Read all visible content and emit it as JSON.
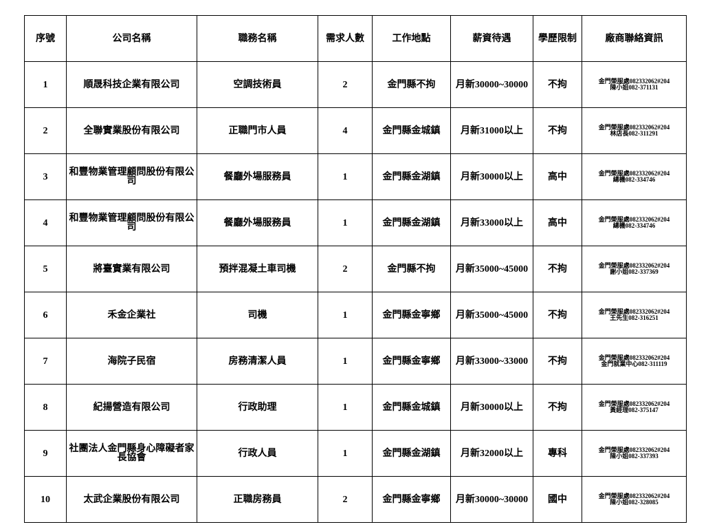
{
  "headers": [
    "序號",
    "公司名稱",
    "職務名稱",
    "需求人數",
    "工作地點",
    "薪資待遇",
    "學歷限制",
    "廠商聯絡資訊"
  ],
  "rows": [
    {
      "no": "1",
      "company": "順晟科技企業有限公司",
      "job": "空調技術員",
      "count": "2",
      "location": "金門縣不拘",
      "salary": "月新30000~30000",
      "edu": "不拘",
      "contact1": "金門榮服處082332062#204",
      "contact2": "陳小姐082-371131"
    },
    {
      "no": "2",
      "company": "全聯實業股份有限公司",
      "job": "正職門市人員",
      "count": "4",
      "location": "金門縣金城鎮",
      "salary": "月新31000以上",
      "edu": "不拘",
      "contact1": "金門榮服處082332062#204",
      "contact2": "林店長082-311291"
    },
    {
      "no": "3",
      "company": "和豐物業管理顧問股份有限公司",
      "job": "餐廳外場服務員",
      "count": "1",
      "location": "金門縣金湖鎮",
      "salary": "月新30000以上",
      "edu": "高中",
      "contact1": "金門榮服處082332062#204",
      "contact2": "總機082-334746"
    },
    {
      "no": "4",
      "company": "和豐物業管理顧問股份有限公司",
      "job": "餐廳外場服務員",
      "count": "1",
      "location": "金門縣金湖鎮",
      "salary": "月新33000以上",
      "edu": "高中",
      "contact1": "金門榮服處082332062#204",
      "contact2": "總機082-334746"
    },
    {
      "no": "5",
      "company": "將臺實業有限公司",
      "job": "預拌混凝土車司機",
      "count": "2",
      "location": "金門縣不拘",
      "salary": "月新35000~45000",
      "edu": "不拘",
      "contact1": "金門榮服處082332062#204",
      "contact2": "謝小姐082-337369"
    },
    {
      "no": "6",
      "company": "禾金企業社",
      "job": "司機",
      "count": "1",
      "location": "金門縣金寧鄉",
      "salary": "月新35000~45000",
      "edu": "不拘",
      "contact1": "金門榮服處082332062#204",
      "contact2": "王先生082-316251"
    },
    {
      "no": "7",
      "company": "海院子民宿",
      "job": "房務清潔人員",
      "count": "1",
      "location": "金門縣金寧鄉",
      "salary": "月新33000~33000",
      "edu": "不拘",
      "contact1": "金門榮服處082332062#204",
      "contact2": "金門就業中心082-311119"
    },
    {
      "no": "8",
      "company": "紀揚營造有限公司",
      "job": "行政助理",
      "count": "1",
      "location": "金門縣金城鎮",
      "salary": "月新30000以上",
      "edu": "不拘",
      "contact1": "金門榮服處082332062#204",
      "contact2": "黃經理082-375147"
    },
    {
      "no": "9",
      "company": "社團法人金門縣身心障礙者家長協會",
      "job": "行政人員",
      "count": "1",
      "location": "金門縣金湖鎮",
      "salary": "月新32000以上",
      "edu": "專科",
      "contact1": "金門榮服處082332062#204",
      "contact2": "陳小姐082-337393"
    },
    {
      "no": "10",
      "company": "太武企業股份有限公司",
      "job": "正職房務員",
      "count": "2",
      "location": "金門縣金寧鄉",
      "salary": "月新30000~30000",
      "edu": "國中",
      "contact1": "金門榮服處082332062#204",
      "contact2": "陳小姐082-328085"
    }
  ]
}
